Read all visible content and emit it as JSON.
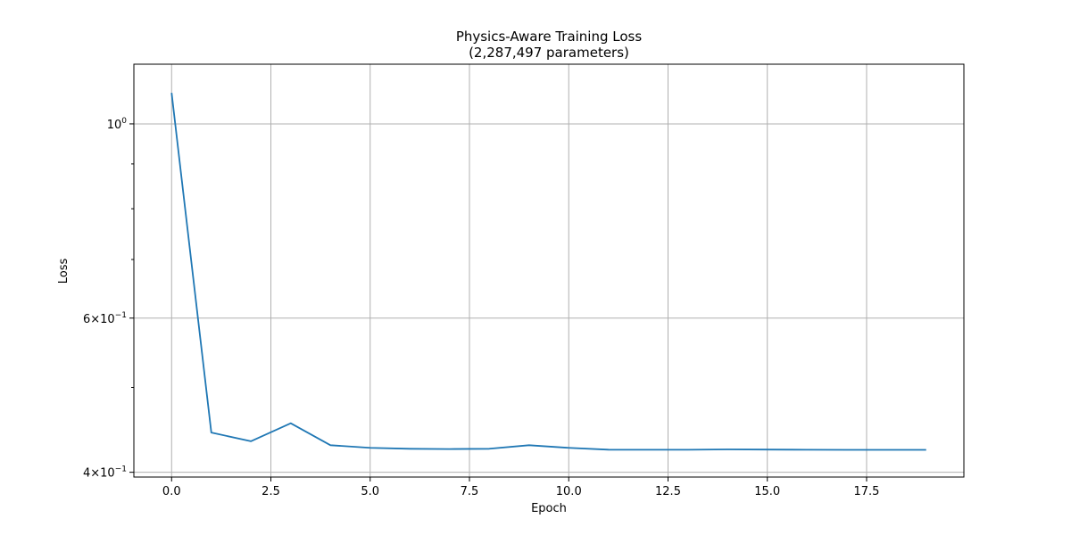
{
  "chart_data": {
    "type": "line",
    "title": "Physics-Aware Training Loss",
    "subtitle": "(2,287,497 parameters)",
    "xlabel": "Epoch",
    "ylabel": "Loss",
    "yscale": "log",
    "xlim": [
      -0.95,
      19.95
    ],
    "ylim": [
      0.395,
      1.17
    ],
    "grid": true,
    "legend": "none",
    "x_ticks": [
      0.0,
      2.5,
      5.0,
      7.5,
      10.0,
      12.5,
      15.0,
      17.5
    ],
    "x_tick_labels": [
      "0.0",
      "2.5",
      "5.0",
      "7.5",
      "10.0",
      "12.5",
      "15.0",
      "17.5"
    ],
    "y_major_ticks": [
      {
        "value": 1.0,
        "label_base": "10",
        "label_exp": "0"
      },
      {
        "value": 0.6,
        "label_base": "6×10",
        "label_exp": "−1"
      },
      {
        "value": 0.4,
        "label_base": "4×10",
        "label_exp": "−1"
      }
    ],
    "y_minor_ticks": [
      0.9,
      0.8,
      0.7,
      0.5
    ],
    "series": [
      {
        "color": "#1f77b4",
        "x": [
          0,
          1,
          2,
          3,
          4,
          5,
          6,
          7,
          8,
          9,
          10,
          11,
          12,
          13,
          14,
          15,
          16,
          17,
          18,
          19
        ],
        "y": [
          1.085,
          0.444,
          0.434,
          0.455,
          0.4295,
          0.4265,
          0.4255,
          0.4252,
          0.4255,
          0.4295,
          0.4265,
          0.4245,
          0.4244,
          0.4244,
          0.4248,
          0.4246,
          0.4244,
          0.4243,
          0.4243,
          0.4243
        ]
      }
    ]
  }
}
